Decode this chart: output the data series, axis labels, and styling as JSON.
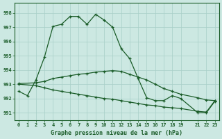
{
  "title": "Graphe pression niveau de la mer (hPa)",
  "background_color": "#cce8e2",
  "grid_color": "#a8cfc8",
  "line_color": "#1a5c28",
  "xlim": [
    -0.5,
    23.5
  ],
  "ylim": [
    990.5,
    998.7
  ],
  "yticks": [
    991,
    992,
    993,
    994,
    995,
    996,
    997,
    998
  ],
  "xtick_positions": [
    0,
    1,
    2,
    3,
    4,
    5,
    6,
    7,
    8,
    9,
    10,
    11,
    12,
    13,
    14,
    15,
    16,
    17,
    18,
    19,
    21,
    22,
    23
  ],
  "xtick_labels": [
    "0",
    "1",
    "2",
    "3",
    "4",
    "5",
    "6",
    "7",
    "8",
    "9",
    "10",
    "11",
    "12",
    "13",
    "14",
    "15",
    "16",
    "17",
    "18",
    "19",
    "21",
    "22",
    "23"
  ],
  "series1_x": [
    0,
    1,
    2,
    3,
    4,
    5,
    6,
    7,
    8,
    9,
    10,
    11,
    12,
    13,
    14,
    15,
    16,
    17,
    18,
    19,
    21,
    22,
    23
  ],
  "series1_y": [
    992.5,
    992.2,
    993.3,
    994.9,
    997.05,
    997.2,
    997.75,
    997.75,
    997.2,
    997.9,
    997.5,
    997.0,
    995.5,
    994.8,
    993.4,
    992.05,
    991.85,
    991.85,
    992.2,
    992.0,
    991.0,
    991.0,
    991.8
  ],
  "series2_x": [
    0,
    2,
    3,
    4,
    5,
    6,
    7,
    8,
    9,
    10,
    11,
    12,
    13,
    14,
    15,
    16,
    17,
    18,
    19,
    21,
    22,
    23
  ],
  "series2_y": [
    993.05,
    993.1,
    993.2,
    993.4,
    993.5,
    993.6,
    993.7,
    993.75,
    993.85,
    993.9,
    993.95,
    993.9,
    993.7,
    993.5,
    993.3,
    993.0,
    992.7,
    992.5,
    992.3,
    992.05,
    991.9,
    991.85
  ],
  "series3_x": [
    0,
    2,
    3,
    4,
    5,
    6,
    7,
    8,
    9,
    10,
    11,
    12,
    13,
    14,
    15,
    16,
    17,
    18,
    19,
    21,
    22,
    23
  ],
  "series3_y": [
    993.0,
    992.9,
    992.75,
    992.6,
    992.5,
    992.4,
    992.3,
    992.2,
    992.1,
    992.0,
    991.95,
    991.85,
    991.75,
    991.65,
    991.55,
    991.5,
    991.4,
    991.35,
    991.3,
    991.1,
    991.05,
    991.85
  ]
}
